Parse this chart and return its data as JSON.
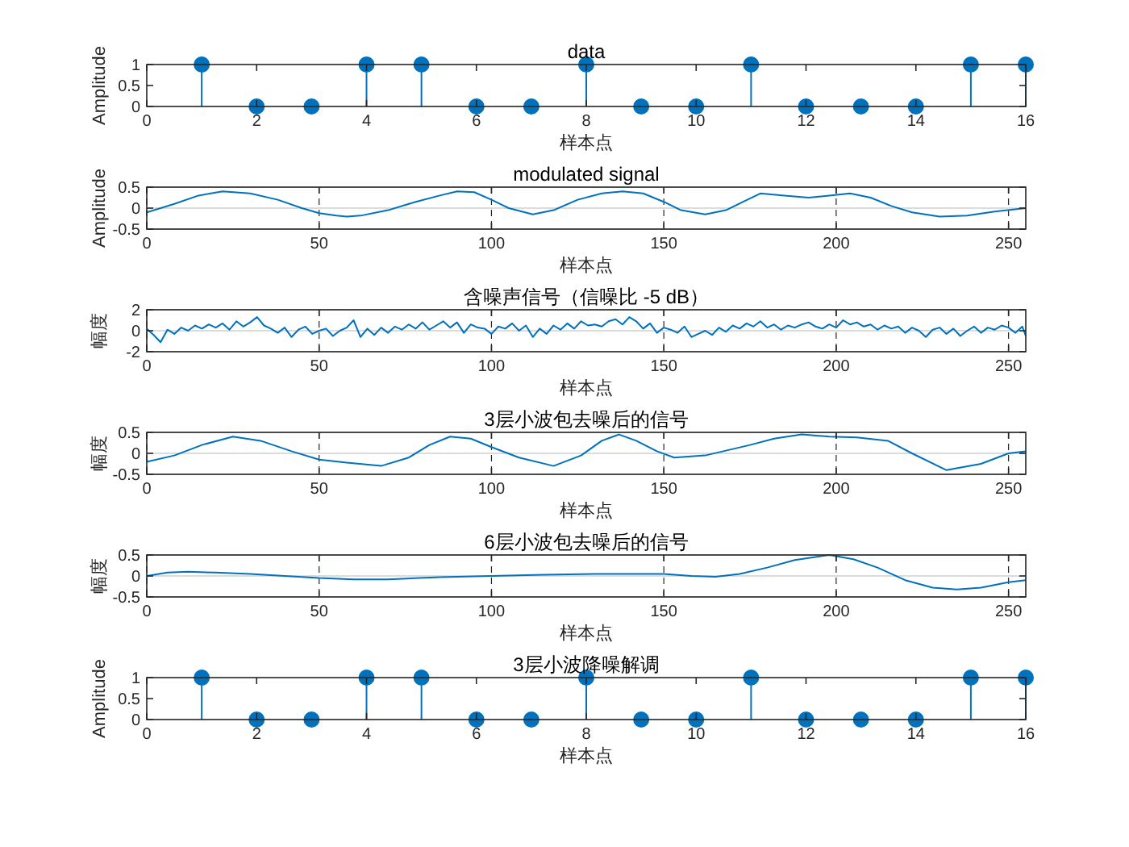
{
  "chart_data": [
    {
      "type": "lollipop",
      "title": "data",
      "xlabel": "样本点",
      "ylabel": "Amplitude",
      "x": [
        1,
        2,
        3,
        4,
        5,
        6,
        7,
        8,
        9,
        10,
        11,
        12,
        13,
        14,
        15,
        16
      ],
      "values": [
        1,
        0,
        0,
        1,
        1,
        0,
        0,
        1,
        0,
        0,
        1,
        0,
        0,
        0,
        1,
        1
      ],
      "color": "#0072bd",
      "marker": "circle",
      "xlim": [
        0,
        16
      ],
      "xticks": [
        0,
        2,
        4,
        6,
        8,
        10,
        12,
        14,
        16
      ],
      "ylim": [
        0,
        1
      ],
      "yticks": [
        0,
        0.5,
        1
      ]
    },
    {
      "type": "line",
      "title": "modulated signal",
      "xlabel": "样本点",
      "ylabel": "Amplitude",
      "grid": true,
      "xlim": [
        0,
        255
      ],
      "xticks": [
        0,
        50,
        100,
        150,
        200,
        250
      ],
      "ylim": [
        -0.5,
        0.5
      ],
      "yticks": [
        -0.5,
        0,
        0.5
      ],
      "series": [
        {
          "color": "#0072bd",
          "x": [
            0,
            8,
            15,
            22,
            30,
            38,
            45,
            50,
            55,
            58,
            62,
            70,
            78,
            85,
            90,
            95,
            100,
            105,
            112,
            118,
            125,
            132,
            138,
            144,
            150,
            155,
            162,
            168,
            173,
            178,
            185,
            192,
            198,
            204,
            210,
            216,
            222,
            230,
            238,
            246,
            255
          ],
          "values": [
            -0.1,
            0.1,
            0.3,
            0.4,
            0.35,
            0.2,
            0.0,
            -0.12,
            -0.18,
            -0.2,
            -0.18,
            -0.05,
            0.15,
            0.3,
            0.4,
            0.38,
            0.2,
            0.0,
            -0.15,
            -0.05,
            0.2,
            0.35,
            0.4,
            0.35,
            0.15,
            -0.05,
            -0.15,
            -0.05,
            0.15,
            0.35,
            0.3,
            0.25,
            0.3,
            0.35,
            0.25,
            0.05,
            -0.1,
            -0.2,
            -0.18,
            -0.08,
            0.0
          ]
        }
      ]
    },
    {
      "type": "line",
      "title": "含噪声信号（信噪比 -5 dB）",
      "xlabel": "样本点",
      "ylabel": "幅度",
      "grid": true,
      "xlim": [
        0,
        255
      ],
      "xticks": [
        0,
        50,
        100,
        150,
        200,
        250
      ],
      "ylim": [
        -2,
        2
      ],
      "yticks": [
        -2,
        0,
        2
      ],
      "series": [
        {
          "color": "#0072bd",
          "x": [
            0,
            2,
            4,
            6,
            8,
            10,
            12,
            14,
            16,
            18,
            20,
            22,
            24,
            26,
            28,
            30,
            32,
            34,
            36,
            38,
            40,
            42,
            44,
            46,
            48,
            50,
            52,
            54,
            56,
            58,
            60,
            62,
            64,
            66,
            68,
            70,
            72,
            74,
            76,
            78,
            80,
            82,
            84,
            86,
            88,
            90,
            92,
            94,
            96,
            98,
            100,
            102,
            104,
            106,
            108,
            110,
            112,
            114,
            116,
            118,
            120,
            122,
            124,
            126,
            128,
            130,
            132,
            134,
            136,
            138,
            140,
            142,
            144,
            146,
            148,
            150,
            152,
            154,
            156,
            158,
            160,
            162,
            164,
            166,
            168,
            170,
            172,
            174,
            176,
            178,
            180,
            182,
            184,
            186,
            188,
            190,
            192,
            194,
            196,
            198,
            200,
            202,
            204,
            206,
            208,
            210,
            212,
            214,
            216,
            218,
            220,
            222,
            224,
            226,
            228,
            230,
            232,
            234,
            236,
            238,
            240,
            242,
            244,
            246,
            248,
            250,
            252,
            254,
            255
          ],
          "values": [
            0.2,
            -0.4,
            -1.1,
            0.1,
            -0.3,
            0.3,
            0.0,
            0.5,
            0.2,
            0.6,
            0.3,
            0.7,
            0.1,
            0.9,
            0.4,
            0.8,
            1.3,
            0.5,
            0.2,
            -0.2,
            0.3,
            -0.6,
            0.1,
            0.4,
            -0.3,
            0.0,
            0.2,
            -0.5,
            0.0,
            0.3,
            1.0,
            -0.6,
            0.2,
            -0.4,
            0.3,
            -0.2,
            0.4,
            0.1,
            0.6,
            0.2,
            0.8,
            0.1,
            0.5,
            0.9,
            0.3,
            0.8,
            -0.2,
            0.6,
            0.3,
            0.2,
            -0.3,
            0.4,
            0.2,
            0.7,
            0.0,
            0.5,
            -0.6,
            0.2,
            -0.3,
            0.5,
            0.1,
            0.7,
            0.2,
            0.9,
            0.5,
            0.6,
            0.4,
            0.9,
            1.1,
            0.6,
            1.3,
            0.9,
            0.2,
            0.7,
            -0.2,
            0.3,
            0.1,
            -0.2,
            0.4,
            -0.6,
            -0.3,
            0.0,
            -0.4,
            0.3,
            -0.1,
            0.5,
            0.2,
            0.7,
            0.4,
            0.9,
            0.3,
            0.6,
            0.1,
            0.5,
            0.3,
            0.6,
            0.8,
            0.4,
            0.2,
            0.6,
            0.3,
            1.0,
            0.6,
            0.8,
            0.4,
            0.6,
            0.1,
            0.5,
            0.2,
            0.4,
            -0.2,
            0.3,
            0.0,
            -0.6,
            0.1,
            0.3,
            -0.3,
            0.2,
            -0.5,
            0.0,
            0.4,
            -0.2,
            0.3,
            0.1,
            0.5,
            0.3,
            -0.2,
            0.4,
            -0.5
          ]
        }
      ]
    },
    {
      "type": "line",
      "title": "3层小波包去噪后的信号",
      "xlabel": "样本点",
      "ylabel": "幅度",
      "grid": true,
      "xlim": [
        0,
        255
      ],
      "xticks": [
        0,
        50,
        100,
        150,
        200,
        250
      ],
      "ylim": [
        -0.5,
        0.5
      ],
      "yticks": [
        -0.5,
        0,
        0.5
      ],
      "series": [
        {
          "color": "#0072bd",
          "x": [
            0,
            8,
            16,
            25,
            33,
            42,
            50,
            58,
            68,
            76,
            82,
            88,
            94,
            100,
            108,
            118,
            126,
            132,
            137,
            142,
            148,
            153,
            162,
            175,
            182,
            190,
            198,
            206,
            215,
            222,
            232,
            242,
            250,
            255
          ],
          "values": [
            -0.2,
            -0.05,
            0.2,
            0.4,
            0.3,
            0.05,
            -0.15,
            -0.22,
            -0.3,
            -0.1,
            0.2,
            0.4,
            0.35,
            0.15,
            -0.1,
            -0.3,
            -0.05,
            0.3,
            0.45,
            0.3,
            0.05,
            -0.1,
            -0.05,
            0.2,
            0.35,
            0.45,
            0.4,
            0.38,
            0.3,
            0.0,
            -0.4,
            -0.25,
            0.0,
            0.05
          ]
        }
      ]
    },
    {
      "type": "line",
      "title": "6层小波包去噪后的信号",
      "xlabel": "样本点",
      "ylabel": "幅度",
      "grid": true,
      "xlim": [
        0,
        255
      ],
      "xticks": [
        0,
        50,
        100,
        150,
        200,
        250
      ],
      "ylim": [
        -0.5,
        0.5
      ],
      "yticks": [
        -0.5,
        0,
        0.5
      ],
      "series": [
        {
          "color": "#0072bd",
          "x": [
            0,
            6,
            12,
            20,
            30,
            40,
            50,
            60,
            70,
            85,
            100,
            115,
            130,
            150,
            158,
            165,
            172,
            180,
            188,
            198,
            205,
            212,
            220,
            228,
            235,
            242,
            250,
            255
          ],
          "values": [
            0.0,
            0.08,
            0.1,
            0.08,
            0.05,
            0.0,
            -0.05,
            -0.08,
            -0.08,
            -0.03,
            0.0,
            0.03,
            0.05,
            0.05,
            0.0,
            -0.02,
            0.05,
            0.2,
            0.38,
            0.5,
            0.4,
            0.2,
            -0.1,
            -0.28,
            -0.32,
            -0.28,
            -0.15,
            -0.1
          ]
        }
      ]
    },
    {
      "type": "lollipop",
      "title": "3层小波降噪解调",
      "xlabel": "样本点",
      "ylabel": "Amplitude",
      "x": [
        1,
        2,
        3,
        4,
        5,
        6,
        7,
        8,
        9,
        10,
        11,
        12,
        13,
        14,
        15,
        16
      ],
      "values": [
        1,
        0,
        0,
        1,
        1,
        0,
        0,
        1,
        0,
        0,
        1,
        0,
        0,
        0,
        1,
        1
      ],
      "color": "#0072bd",
      "marker": "circle",
      "xlim": [
        0,
        16
      ],
      "xticks": [
        0,
        2,
        4,
        6,
        8,
        10,
        12,
        14,
        16
      ],
      "ylim": [
        0,
        1
      ],
      "yticks": [
        0,
        0.5,
        1
      ]
    }
  ]
}
